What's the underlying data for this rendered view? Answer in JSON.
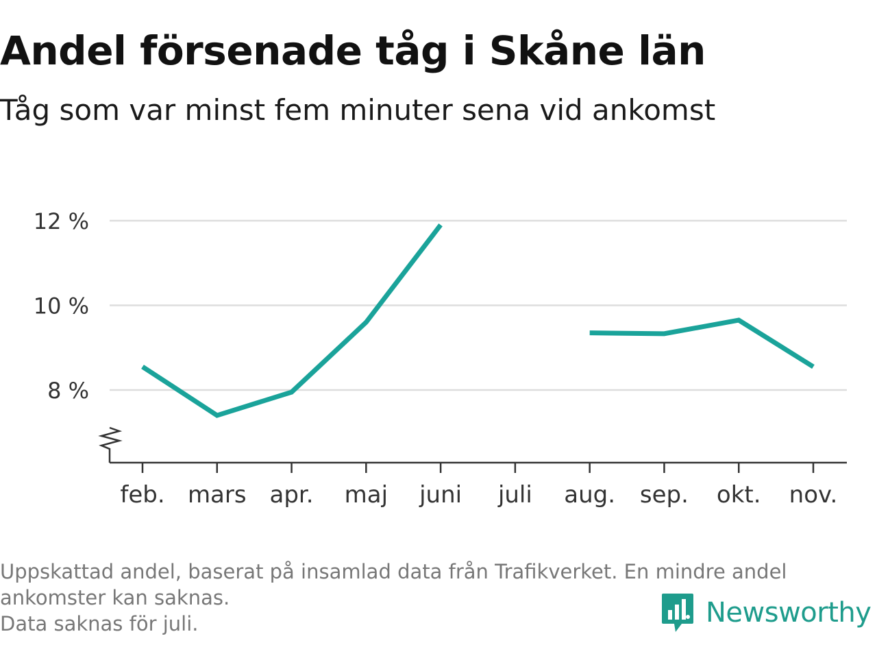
{
  "title": "Andel försenade tåg i Skåne län",
  "subtitle": "Tåg som var minst fem minuter sena vid ankomst",
  "footnote": {
    "line1": "Uppskattad andel, baserat på insamlad data från Trafikverket. En mindre andel",
    "line2": "ankomster kan saknas.",
    "line3": "Data saknas för juli."
  },
  "brand": {
    "name": "Newsworthy",
    "color": "#1e9c8c",
    "icon": "newsworthy-logo-icon"
  },
  "chart_data": {
    "type": "line",
    "title": "Andel försenade tåg i Skåne län",
    "subtitle": "Tåg som var minst fem minuter sena vid ankomst",
    "xlabel": "",
    "ylabel": "",
    "categories": [
      "feb.",
      "mars",
      "apr.",
      "maj",
      "juni",
      "juli",
      "aug.",
      "sep.",
      "okt.",
      "nov."
    ],
    "series": [
      {
        "values": [
          8.55,
          7.4,
          7.95,
          9.6,
          11.9,
          null,
          9.35,
          9.33,
          9.65,
          8.55
        ],
        "color": "#1aa39a"
      }
    ],
    "y_ticks": [
      8,
      10,
      12
    ],
    "y_tick_labels": [
      "8 %",
      "10 %",
      "12 %"
    ],
    "ylim": [
      6.3,
      12.3
    ],
    "y_axis_break": true,
    "grid": true,
    "legend": "none"
  }
}
